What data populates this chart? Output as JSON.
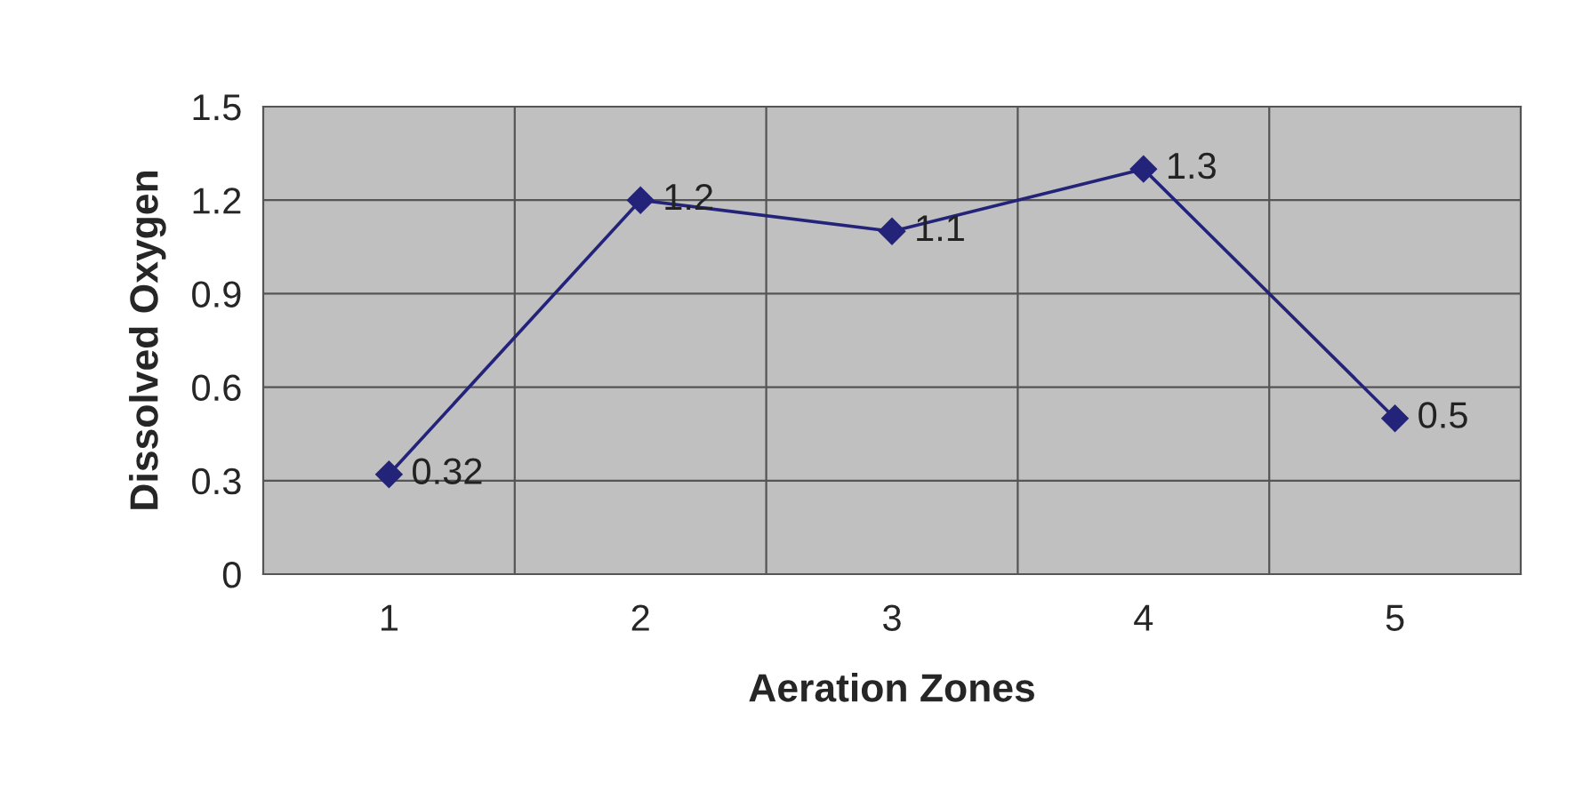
{
  "chart_data": {
    "type": "line",
    "xlabel": "Aeration Zones",
    "ylabel": "Dissolved Oxygen",
    "categories": [
      "1",
      "2",
      "3",
      "4",
      "5"
    ],
    "series": [
      {
        "color": "#23237a",
        "values": [
          0.32,
          1.2,
          1.1,
          1.3,
          0.5
        ]
      }
    ],
    "ylim": [
      0,
      1.5
    ],
    "yticks": [
      0,
      0.3,
      0.6,
      0.9,
      1.2,
      1.5
    ],
    "grid": true,
    "marker": "diamond",
    "line_style": "solid",
    "data_labels": true
  }
}
